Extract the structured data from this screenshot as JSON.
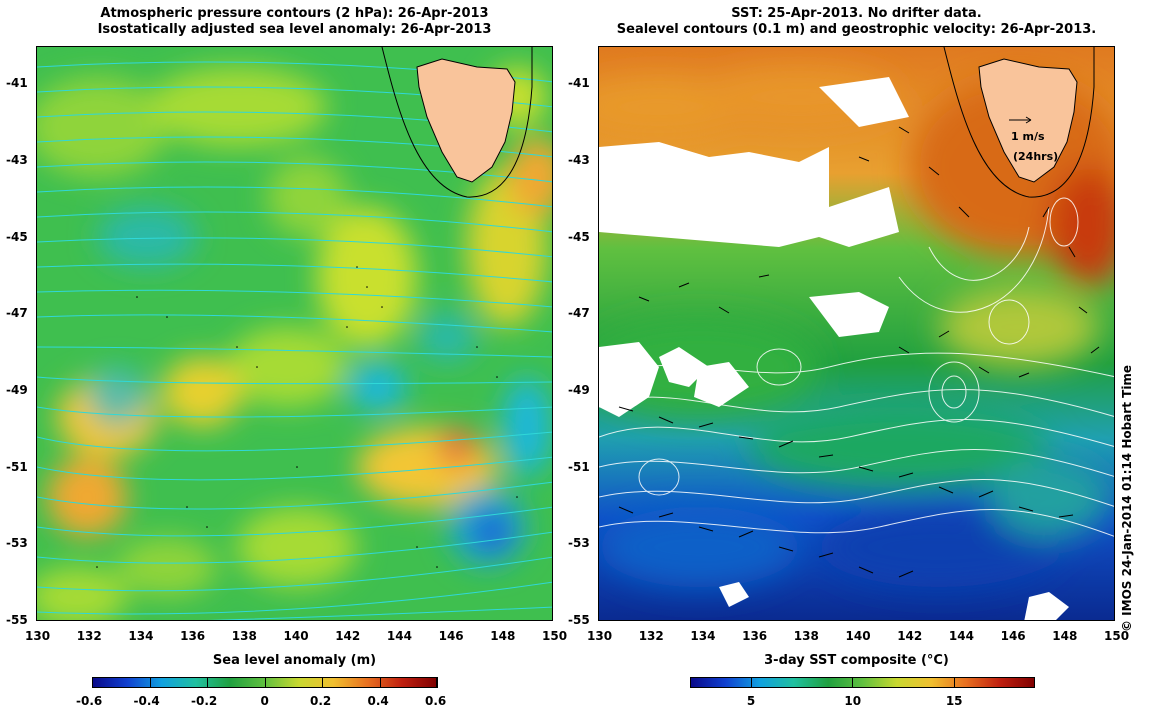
{
  "left_panel": {
    "title_line1": "Atmospheric pressure contours (2 hPa): 26-Apr-2013",
    "title_line2": "Isostatically adjusted sea level anomaly: 26-Apr-2013",
    "xlabel": "Sea level anomaly (m)",
    "colorbar": {
      "ticks": [
        "-0.6",
        "-0.4",
        "-0.2",
        "0",
        "0.2",
        "0.4",
        "0.6"
      ],
      "range": [
        -0.6,
        0.6
      ]
    }
  },
  "right_panel": {
    "title_line1": "SST: 25-Apr-2013. No drifter data.",
    "title_line2": "Sealevel contours (0.1 m) and geostrophic velocity: 26-Apr-2013.",
    "xlabel": "3-day SST composite (°C)",
    "colorbar": {
      "ticks": [
        "5",
        "10",
        "15"
      ],
      "range": [
        2,
        19
      ]
    },
    "velocity_scale": {
      "label": "1 m/s",
      "sublabel": "(24hrs)"
    }
  },
  "map": {
    "lon_ticks": [
      "130",
      "132",
      "134",
      "136",
      "138",
      "140",
      "142",
      "144",
      "146",
      "148",
      "150"
    ],
    "lat_ticks": [
      "-41",
      "-43",
      "-45",
      "-47",
      "-49",
      "-51",
      "-53",
      "-55"
    ],
    "lon_range": [
      130,
      150
    ],
    "lat_range": [
      -55,
      -40
    ]
  },
  "credit": "© IMOS 24-Jan-2014 01:14 Hobart Time",
  "colors": {
    "land": "#f9c49b",
    "pressure_contour": "#30d8d8",
    "sealevel_contour": "#ffffff",
    "missing_data": "#ffffff"
  }
}
